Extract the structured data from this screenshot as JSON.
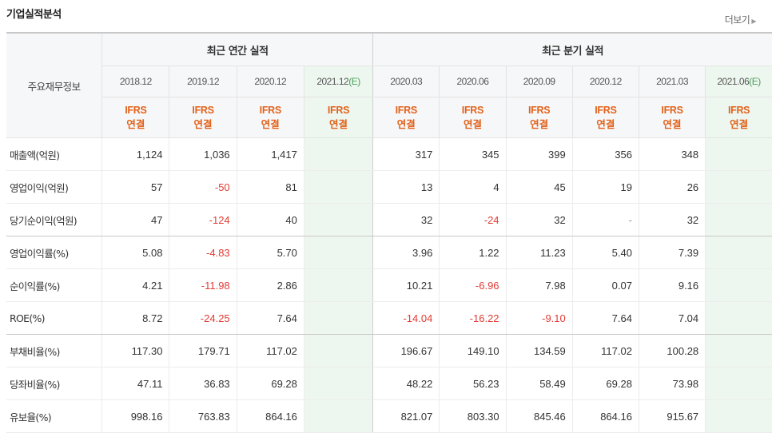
{
  "header": {
    "title": "기업실적분석",
    "more_label": "더보기",
    "more_arrow": "▶"
  },
  "table": {
    "label_header": "주요재무정보",
    "groups": [
      "최근 연간 실적",
      "최근 분기 실적"
    ],
    "periods": [
      {
        "label": "2018.12",
        "suffix": "",
        "estimate": false
      },
      {
        "label": "2019.12",
        "suffix": "",
        "estimate": false
      },
      {
        "label": "2020.12",
        "suffix": "",
        "estimate": false
      },
      {
        "label": "2021.12",
        "suffix": "(E)",
        "estimate": true
      },
      {
        "label": "2020.03",
        "suffix": "",
        "estimate": false
      },
      {
        "label": "2020.06",
        "suffix": "",
        "estimate": false
      },
      {
        "label": "2020.09",
        "suffix": "",
        "estimate": false
      },
      {
        "label": "2020.12",
        "suffix": "",
        "estimate": false
      },
      {
        "label": "2021.03",
        "suffix": "",
        "estimate": false
      },
      {
        "label": "2021.06",
        "suffix": "(E)",
        "estimate": true
      }
    ],
    "standard": {
      "ifrs": "IFRS",
      "basis": "연결"
    },
    "rows": [
      {
        "label": "매출액(억원)",
        "values": [
          "1,124",
          "1,036",
          "1,417",
          "",
          "317",
          "345",
          "399",
          "356",
          "348",
          ""
        ]
      },
      {
        "label": "영업이익(억원)",
        "values": [
          "57",
          "-50",
          "81",
          "",
          "13",
          "4",
          "45",
          "19",
          "26",
          ""
        ]
      },
      {
        "label": "당기순이익(억원)",
        "values": [
          "47",
          "-124",
          "40",
          "",
          "32",
          "-24",
          "32",
          "-",
          "32",
          ""
        ]
      },
      {
        "label": "영업이익률(%)",
        "values": [
          "5.08",
          "-4.83",
          "5.70",
          "",
          "3.96",
          "1.22",
          "11.23",
          "5.40",
          "7.39",
          ""
        ]
      },
      {
        "label": "순이익률(%)",
        "values": [
          "4.21",
          "-11.98",
          "2.86",
          "",
          "10.21",
          "-6.96",
          "7.98",
          "0.07",
          "9.16",
          ""
        ]
      },
      {
        "label": "ROE(%)",
        "values": [
          "8.72",
          "-24.25",
          "7.64",
          "",
          "-14.04",
          "-16.22",
          "-9.10",
          "7.64",
          "7.04",
          ""
        ]
      },
      {
        "label": "부채비율(%)",
        "values": [
          "117.30",
          "179.71",
          "117.02",
          "",
          "196.67",
          "149.10",
          "134.59",
          "117.02",
          "100.28",
          ""
        ]
      },
      {
        "label": "당좌비율(%)",
        "values": [
          "47.11",
          "36.83",
          "69.28",
          "",
          "48.22",
          "56.23",
          "58.49",
          "69.28",
          "73.98",
          ""
        ]
      },
      {
        "label": "유보율(%)",
        "values": [
          "998.16",
          "763.83",
          "864.16",
          "",
          "821.07",
          "803.30",
          "845.46",
          "864.16",
          "915.67",
          ""
        ]
      }
    ],
    "colors": {
      "negative": "#e23a33",
      "ifrs": "#e2621b",
      "estimate_bg": "#edf7ef",
      "estimate_text": "#4aa05a",
      "header_bg": "#f6f7f8"
    }
  }
}
